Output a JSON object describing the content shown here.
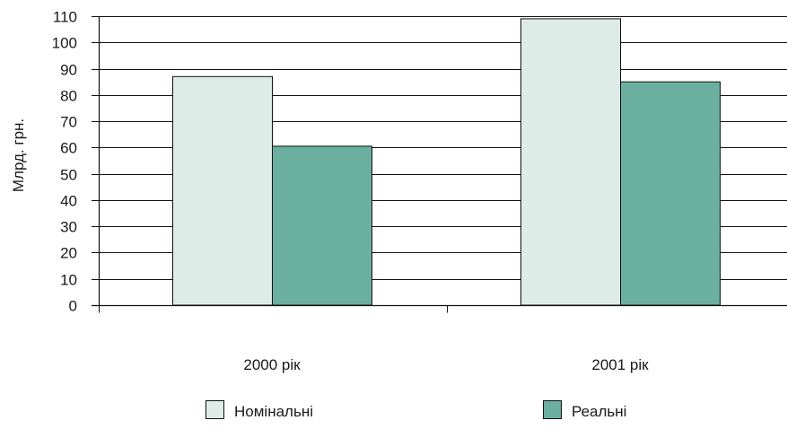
{
  "chart_data": {
    "type": "bar",
    "title": "",
    "xlabel": "",
    "ylabel": "Млрд. грн.",
    "ylim": [
      0,
      110
    ],
    "yticks": [
      0,
      10,
      20,
      30,
      40,
      50,
      60,
      70,
      80,
      90,
      100,
      110
    ],
    "categories": [
      "2000 рік",
      "2001 рік"
    ],
    "series": [
      {
        "name": "Номінальні",
        "values": [
          87,
          109
        ],
        "color": "#deece8"
      },
      {
        "name": "Реальні",
        "values": [
          60.5,
          85
        ],
        "color": "#6aafa0"
      }
    ],
    "grid": true,
    "legend_position": "bottom"
  }
}
